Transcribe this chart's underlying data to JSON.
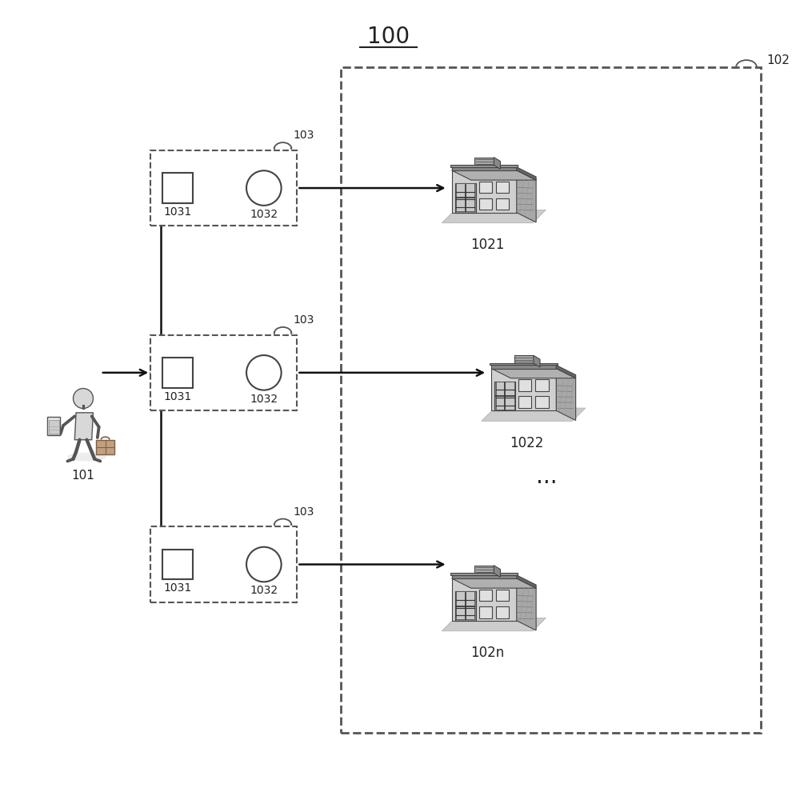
{
  "bg_color": "#ffffff",
  "label_100": "100",
  "label_102": "102",
  "label_101": "101",
  "label_1021": "1021",
  "label_1022": "1022",
  "label_102n": "102n",
  "label_103": "103",
  "label_1031": "1031",
  "label_1032": "1032",
  "text_color": "#222222",
  "dash_color": "#555555",
  "arrow_color": "#111111",
  "building_roof_top": "#b0b0b0",
  "building_roof_side": "#888888",
  "building_front": "#d0d0d0",
  "building_side": "#a8a8a8",
  "building_base": "#c8c8c8",
  "building_edge": "#444444",
  "building_window_front": "#e8e8e8",
  "building_window_side": "#c0c0c0",
  "building_dark": "#333333",
  "person_body": "#d8d8d8",
  "person_edge": "#555555"
}
